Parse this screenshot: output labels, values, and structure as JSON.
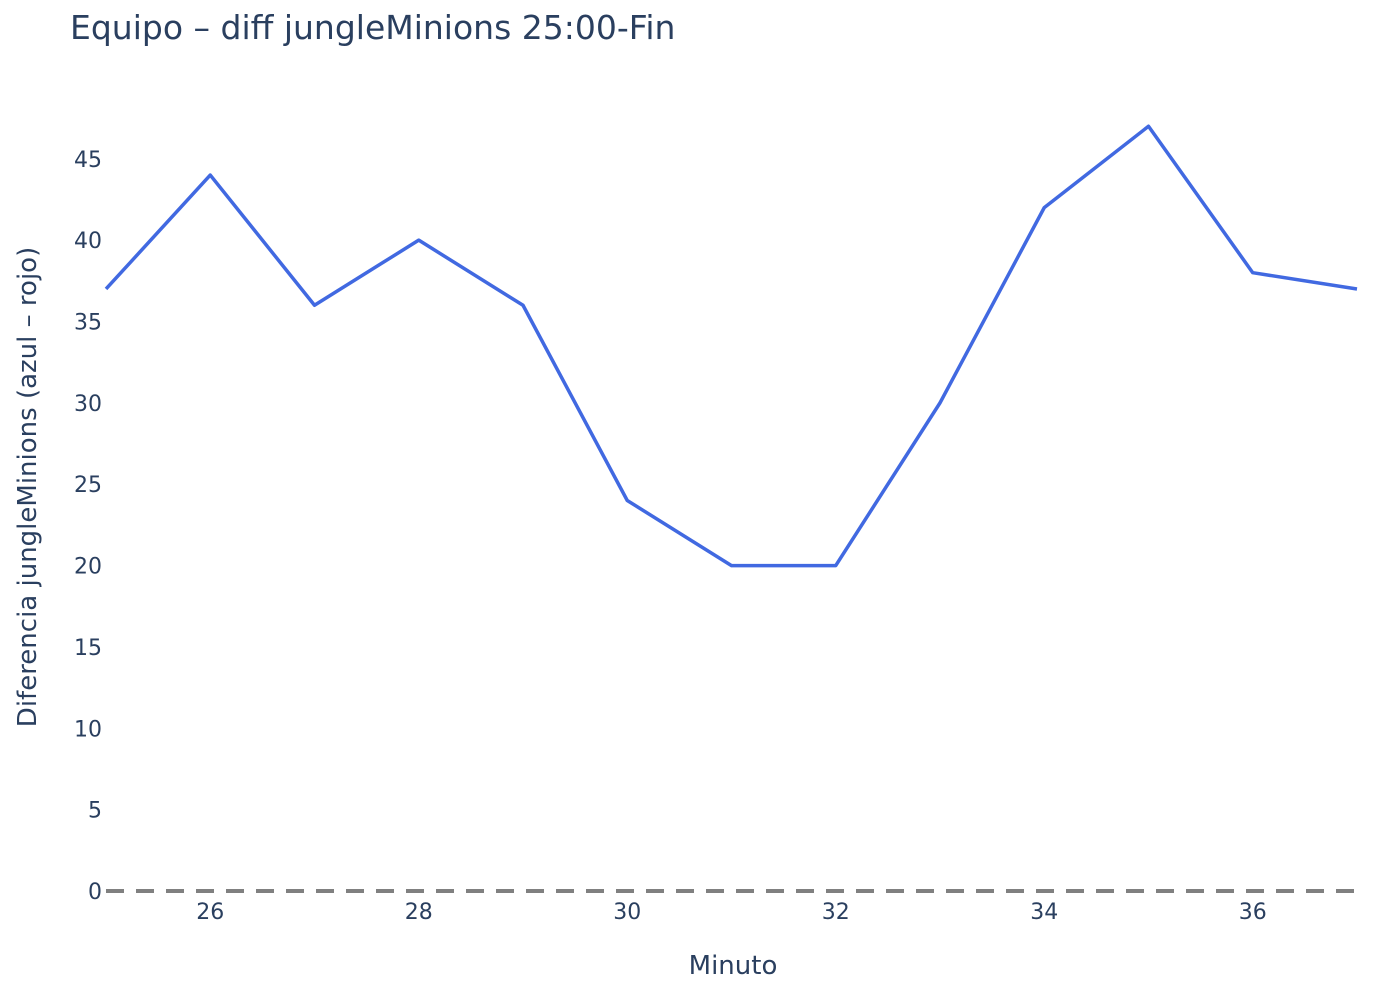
{
  "chart_data": {
    "type": "line",
    "title": "Equipo – diff jungleMinions 25:00-Fin",
    "xlabel": "Minuto",
    "ylabel": "Diferencia jungleMinions (azul – rojo)",
    "x": [
      25,
      26,
      27,
      28,
      29,
      30,
      31,
      32,
      33,
      34,
      35,
      36,
      37
    ],
    "series": [
      {
        "values": [
          37,
          44,
          36,
          40,
          36,
          24,
          20,
          20,
          30,
          42,
          47,
          38,
          37
        ]
      }
    ],
    "xlim": [
      25,
      37
    ],
    "ylim": [
      0,
      48
    ],
    "xticks": [
      26,
      28,
      30,
      32,
      34,
      36
    ],
    "yticks": [
      0,
      5,
      10,
      15,
      20,
      25,
      30,
      35,
      40,
      45
    ],
    "reference_line": {
      "y": 0,
      "style": "dashed"
    },
    "grid": false,
    "colors": {
      "line": "#4169e1",
      "reference": "#808080",
      "text": "#2a3f5f"
    }
  }
}
